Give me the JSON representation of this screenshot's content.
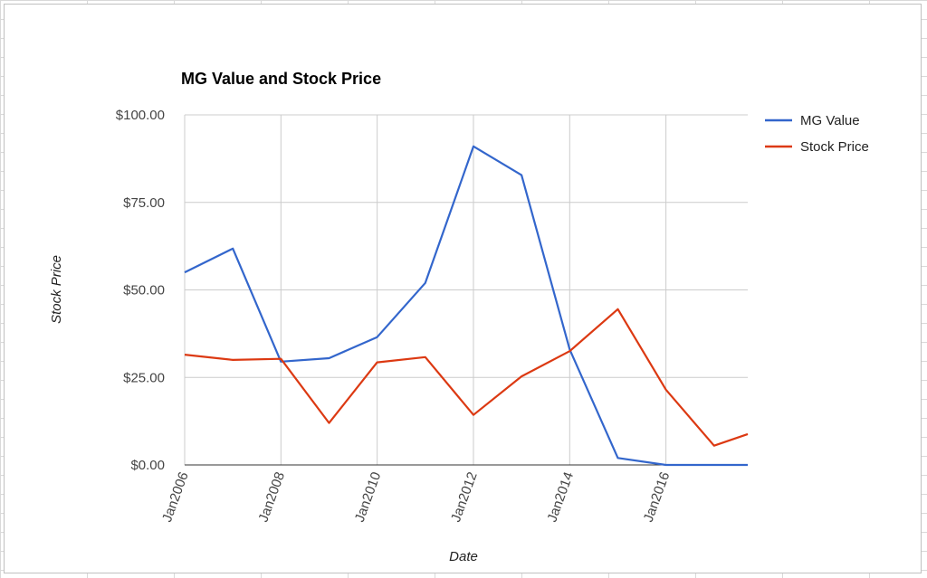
{
  "chart_data": {
    "type": "line",
    "title": "MG Value and Stock Price",
    "xlabel": "Date",
    "ylabel": "Stock Price",
    "x": [
      2006,
      2007,
      2008,
      2009,
      2010,
      2011,
      2012,
      2013,
      2014,
      2015,
      2016,
      2017,
      2017.7
    ],
    "x_ticks": [
      2006,
      2008,
      2010,
      2012,
      2014,
      2016
    ],
    "x_tick_labels": [
      "Jan2006",
      "Jan2008",
      "Jan2010",
      "Jan2012",
      "Jan2014",
      "Jan2016"
    ],
    "xlim": [
      2006,
      2017.7
    ],
    "y_ticks": [
      0,
      25,
      50,
      75,
      100
    ],
    "y_tick_labels": [
      "$0.00",
      "$25.00",
      "$50.00",
      "$75.00",
      "$100.00"
    ],
    "ylim": [
      0,
      100
    ],
    "grid": true,
    "legend_position": "right",
    "series": [
      {
        "name": "MG Value",
        "color": "#3366cc",
        "values": [
          55.0,
          61.8,
          29.5,
          30.5,
          36.5,
          52.0,
          91.0,
          82.8,
          33.0,
          2.0,
          0.0,
          0.0,
          0.0
        ]
      },
      {
        "name": "Stock Price",
        "color": "#dc3912",
        "values": [
          31.5,
          30.0,
          30.3,
          12.0,
          29.3,
          30.8,
          14.3,
          25.3,
          32.5,
          44.5,
          21.5,
          5.5,
          8.8
        ]
      }
    ]
  }
}
